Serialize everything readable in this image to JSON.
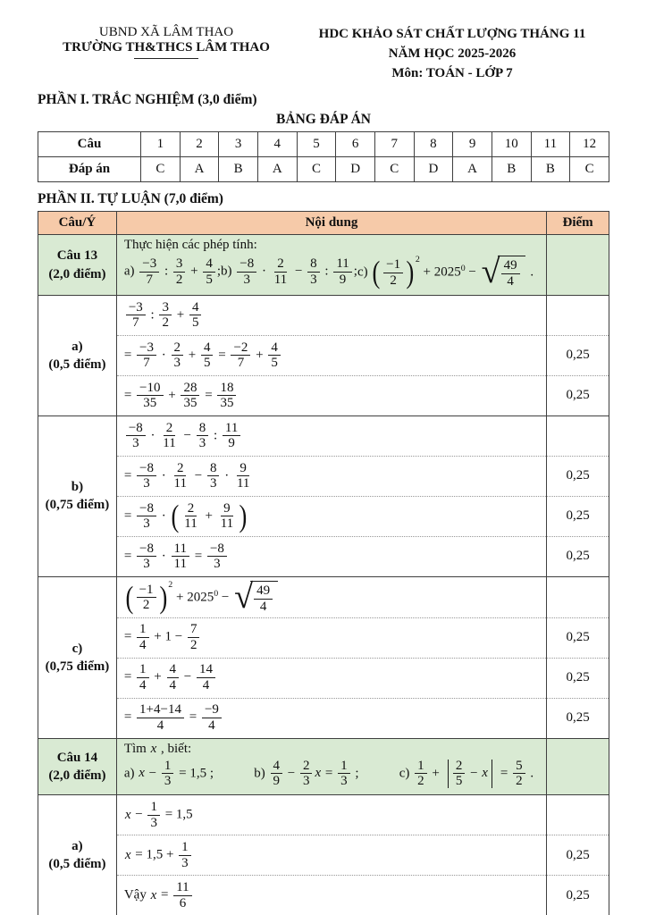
{
  "header": {
    "left": {
      "line1": "UBND XÃ LÂM THAO",
      "line2": "TRƯỜNG TH&THCS LÂM THAO"
    },
    "right": {
      "line1": "HDC KHẢO SÁT CHẤT LƯỢNG THÁNG 11",
      "line2": "NĂM HỌC 2025-2026",
      "line3": "Môn: TOÁN - LỚP 7"
    }
  },
  "part1": {
    "title": "PHẦN I. TRẮC NGHIỆM (3,0 điểm)",
    "table_title": "BẢNG ĐÁP ÁN",
    "answer_table": {
      "row1_label": "Câu",
      "row2_label": "Đáp án",
      "questions": [
        "1",
        "2",
        "3",
        "4",
        "5",
        "6",
        "7",
        "8",
        "9",
        "10",
        "11",
        "12"
      ],
      "answers": [
        "C",
        "A",
        "B",
        "A",
        "C",
        "D",
        "C",
        "D",
        "A",
        "B",
        "B",
        "C"
      ]
    }
  },
  "part2": {
    "title": "PHẦN II. TỰ LUẬN (7,0 điểm)",
    "columns": [
      "Câu/Ý",
      "Nội dung",
      "Điểm"
    ],
    "rows": [
      {
        "kind": "question",
        "label": "Câu 13",
        "points_label": "(2,0 điểm)",
        "intro": "Thực hiện các phép tính:",
        "items": [
          {
            "tag": "a)",
            "math": "{−3|7} : {3|2} + {4|5};"
          },
          {
            "tag": "b)",
            "math": "{−8|3} · {2|11} − {8|3} : {11|9};"
          },
          {
            "tag": "c)",
            "math": "@p({−1|2})@e(2) + 2025@e(0) − @s({49|4}) ."
          }
        ]
      },
      {
        "kind": "group",
        "label": "a)",
        "points_label": "(0,5 điểm)",
        "steps": [
          {
            "math": "{−3|7} : {3|2} + {4|5}",
            "point": ""
          },
          {
            "math": "= {−3|7} · {2|3} + {4|5} = {−2|7} + {4|5}",
            "point": "0,25"
          },
          {
            "math": "= {−10|35} + {28|35} = {18|35}",
            "point": "0,25"
          }
        ]
      },
      {
        "kind": "group",
        "label": "b)",
        "points_label": "(0,75 điểm)",
        "steps": [
          {
            "math": "{−8|3} · {2|11} − {8|3} : {11|9}",
            "point": ""
          },
          {
            "math": "= {−8|3} · {2|11} − {8|3} · {9|11}",
            "point": "0,25"
          },
          {
            "math": "= {−8|3} · @p({2|11} + {9|11})",
            "point": "0,25"
          },
          {
            "math": "= {−8|3} · {11|11} = {−8|3}",
            "point": "0,25"
          }
        ]
      },
      {
        "kind": "group",
        "label": "c)",
        "points_label": "(0,75 điểm)",
        "steps": [
          {
            "math": "@p({−1|2})@e(2) + 2025@e(0) − @s({49|4})",
            "point": ""
          },
          {
            "math": "= {1|4} + 1 − {7|2}",
            "point": "0,25"
          },
          {
            "math": "= {1|4} + {4|4} − {14|4}",
            "point": "0,25"
          },
          {
            "math": "= {1+4−14|4} = {−9|4}",
            "point": "0,25"
          }
        ]
      },
      {
        "kind": "question",
        "label": "Câu 14",
        "points_label": "(2,0 điểm)",
        "intro": "Tìm @i(x) , biết:",
        "items": [
          {
            "tag": "a)",
            "math": "@i(x) − {1|3} = 1,5 ;"
          },
          {
            "tag": "b)",
            "math": "{4|9} − {2|3}@i(x) = {1|3} ;"
          },
          {
            "tag": "c)",
            "math": "{1|2} + @a({2|5} − @i(x)) = {5|2} ."
          }
        ]
      },
      {
        "kind": "group",
        "label": "a)",
        "points_label": "(0,5 điểm)",
        "steps": [
          {
            "math": "@i(x) − {1|3} = 1,5",
            "point": ""
          },
          {
            "math": "@i(x) = 1,5 + {1|3}",
            "point": "0,25"
          },
          {
            "math": "Vậy @i(x) = {11|6}",
            "point": "0,25"
          }
        ]
      }
    ]
  },
  "colors": {
    "table_header_bg": "#f6caa9",
    "question_row_bg": "#d9ead3",
    "border": "#3f3f3f"
  }
}
